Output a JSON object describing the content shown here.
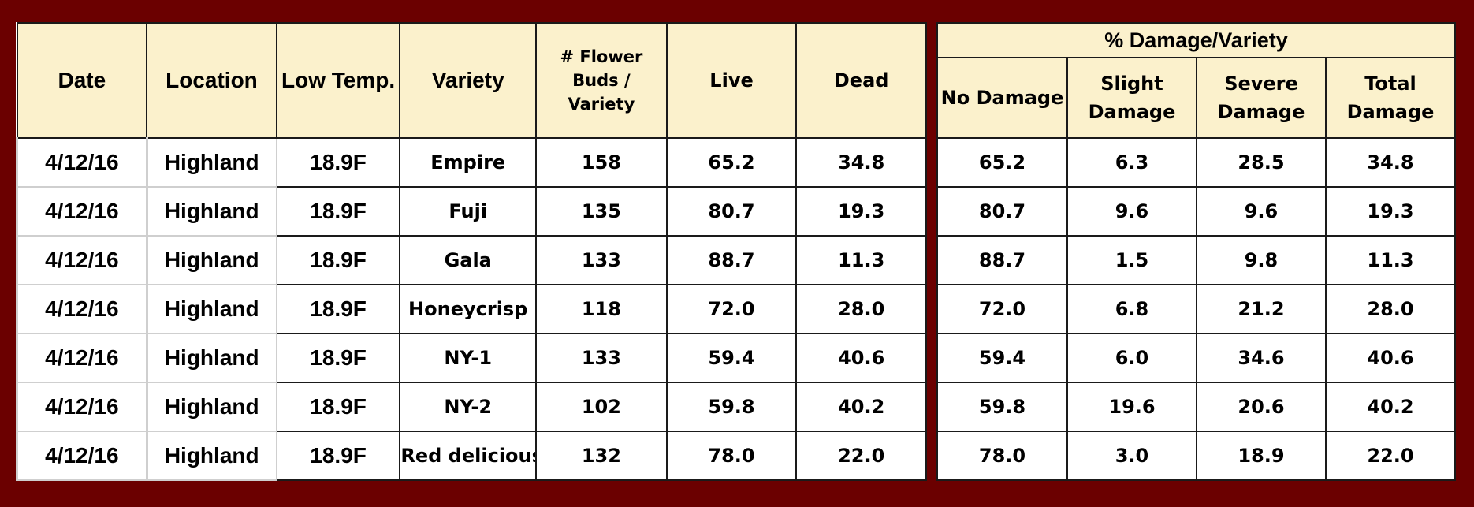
{
  "left_table": {
    "headers": {
      "date": "Date",
      "location": "Location",
      "low_temp": "Low Temp.",
      "variety": "Variety",
      "flower_buds": "# Flower Buds / Variety",
      "live": "Live",
      "dead": "Dead"
    },
    "rows": [
      {
        "date": "4/12/16",
        "location": "Highland",
        "low_temp": "18.9F",
        "variety": "Empire",
        "buds": "158",
        "live": "65.2",
        "dead": "34.8"
      },
      {
        "date": "4/12/16",
        "location": "Highland",
        "low_temp": "18.9F",
        "variety": "Fuji",
        "buds": "135",
        "live": "80.7",
        "dead": "19.3"
      },
      {
        "date": "4/12/16",
        "location": "Highland",
        "low_temp": "18.9F",
        "variety": "Gala",
        "buds": "133",
        "live": "88.7",
        "dead": "11.3"
      },
      {
        "date": "4/12/16",
        "location": "Highland",
        "low_temp": "18.9F",
        "variety": "Honeycrisp",
        "buds": "118",
        "live": "72.0",
        "dead": "28.0"
      },
      {
        "date": "4/12/16",
        "location": "Highland",
        "low_temp": "18.9F",
        "variety": "NY-1",
        "buds": "133",
        "live": "59.4",
        "dead": "40.6"
      },
      {
        "date": "4/12/16",
        "location": "Highland",
        "low_temp": "18.9F",
        "variety": "NY-2",
        "buds": "102",
        "live": "59.8",
        "dead": "40.2"
      },
      {
        "date": "4/12/16",
        "location": "Highland",
        "low_temp": "18.9F",
        "variety": "Red delicious",
        "buds": "132",
        "live": "78.0",
        "dead": "22.0"
      }
    ]
  },
  "right_table": {
    "group_header": "% Damage/Variety",
    "headers": {
      "no_damage": "No Damage",
      "slight": "Slight Damage",
      "severe": "Severe Damage",
      "total": "Total Damage"
    },
    "rows": [
      {
        "no_damage": "65.2",
        "slight": "6.3",
        "severe": "28.5",
        "total": "34.8"
      },
      {
        "no_damage": "80.7",
        "slight": "9.6",
        "severe": "9.6",
        "total": "19.3"
      },
      {
        "no_damage": "88.7",
        "slight": "1.5",
        "severe": "9.8",
        "total": "11.3"
      },
      {
        "no_damage": "72.0",
        "slight": "6.8",
        "severe": "21.2",
        "total": "28.0"
      },
      {
        "no_damage": "59.4",
        "slight": "6.0",
        "severe": "34.6",
        "total": "40.6"
      },
      {
        "no_damage": "59.8",
        "slight": "19.6",
        "severe": "20.6",
        "total": "40.2"
      },
      {
        "no_damage": "78.0",
        "slight": "3.0",
        "severe": "18.9",
        "total": "22.0"
      }
    ]
  },
  "colors": {
    "frame": "#6b0000",
    "header_bg": "#fbf1cc",
    "cell_bg": "#ffffff"
  }
}
